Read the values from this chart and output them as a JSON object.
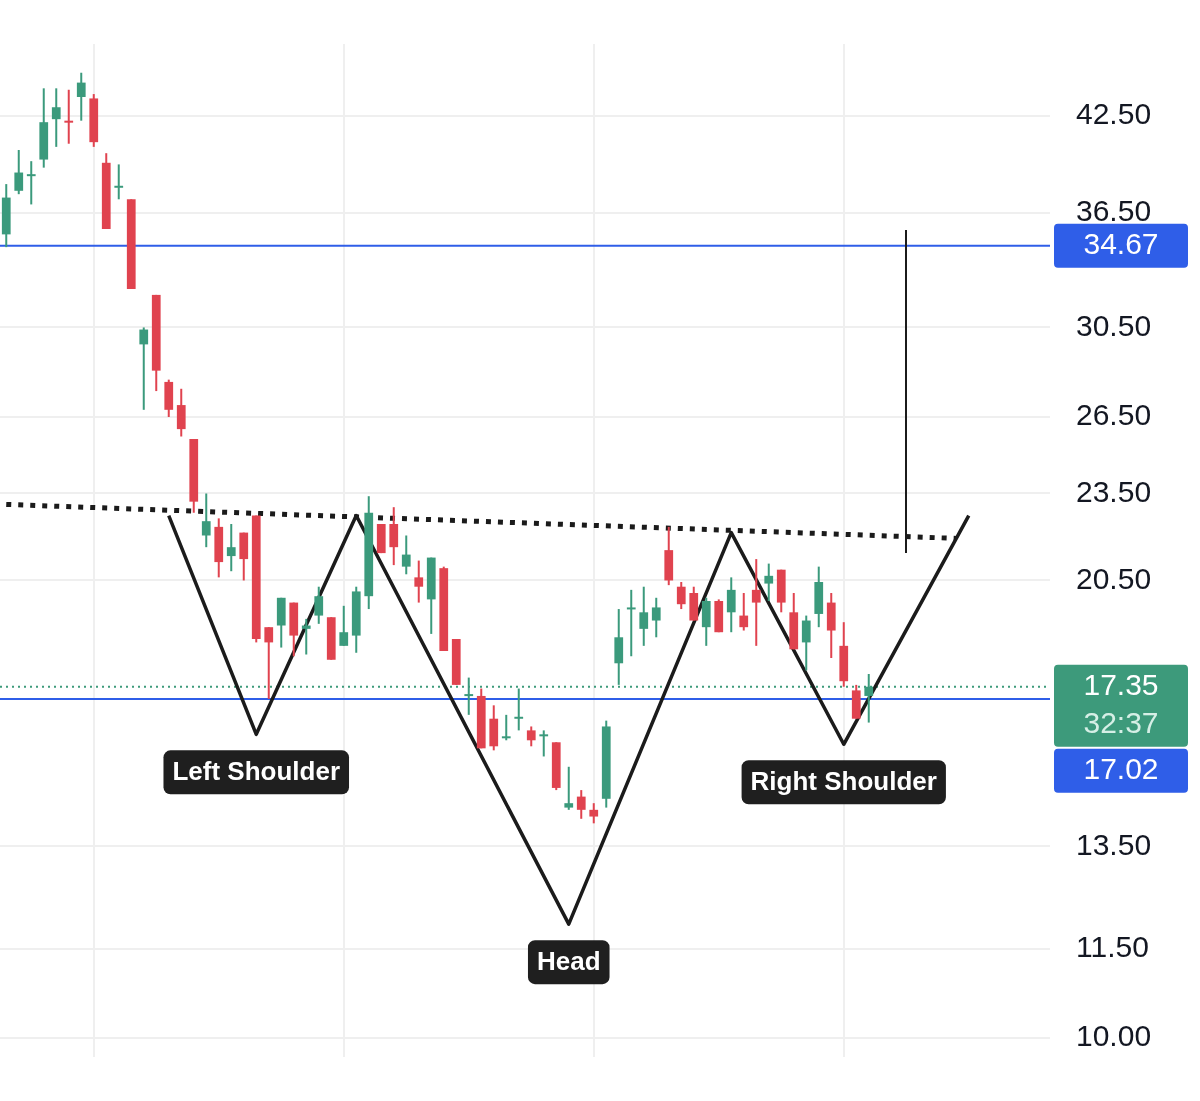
{
  "chart_data": {
    "type": "candlestick",
    "categories": [
      null,
      null,
      null,
      null,
      null,
      null,
      null,
      null,
      null,
      null,
      null,
      null,
      null,
      null,
      null,
      null,
      null,
      null,
      null,
      null,
      null,
      null,
      null,
      null,
      null,
      null,
      null,
      null,
      null,
      null,
      null,
      null,
      null,
      null,
      null,
      null,
      null,
      null,
      null,
      null,
      null,
      null,
      null,
      null,
      null,
      null,
      null,
      null,
      null,
      null,
      null,
      null,
      null,
      null,
      null,
      null,
      null,
      null,
      null,
      null,
      null,
      null,
      null,
      null,
      null,
      null,
      null,
      null,
      null,
      null,
      null,
      null,
      null,
      null,
      null,
      null,
      null,
      null,
      null,
      null,
      null,
      null,
      null,
      null
    ],
    "ohlc": [
      [
        35.3,
        38.2,
        34.6,
        37.4
      ],
      [
        37.8,
        40.3,
        37.6,
        38.9
      ],
      [
        38.7,
        39.6,
        37.0,
        38.8
      ],
      [
        39.7,
        44.4,
        39.2,
        42.1
      ],
      [
        42.3,
        44.4,
        40.5,
        43.1
      ],
      [
        42.2,
        44.3,
        40.7,
        42.1
      ],
      [
        43.8,
        45.5,
        42.2,
        44.8
      ],
      [
        43.7,
        44.0,
        40.5,
        40.8
      ],
      [
        39.5,
        40.1,
        35.6,
        35.6
      ],
      [
        38.0,
        39.4,
        37.3,
        38.1
      ],
      [
        37.3,
        37.3,
        32.4,
        32.4
      ],
      [
        29.7,
        30.5,
        26.8,
        30.4
      ],
      [
        32.1,
        32.1,
        27.6,
        28.5
      ],
      [
        28.0,
        28.1,
        26.5,
        26.8
      ],
      [
        27.0,
        27.7,
        25.7,
        26.0
      ],
      [
        25.6,
        25.6,
        22.8,
        23.2
      ],
      [
        22.0,
        23.5,
        21.6,
        22.5
      ],
      [
        22.3,
        22.6,
        20.6,
        21.1
      ],
      [
        21.3,
        22.4,
        20.8,
        21.6
      ],
      [
        22.1,
        22.1,
        20.5,
        21.2
      ],
      [
        22.7,
        22.7,
        18.6,
        18.7
      ],
      [
        19.05,
        19.05,
        17.02,
        18.6
      ],
      [
        19.1,
        19.95,
        18.45,
        19.95
      ],
      [
        19.8,
        19.8,
        18.2,
        18.8
      ],
      [
        19.0,
        19.3,
        18.25,
        19.1
      ],
      [
        19.4,
        20.3,
        19.15,
        20.0
      ],
      [
        19.35,
        19.35,
        18.1,
        18.1
      ],
      [
        18.5,
        19.7,
        18.5,
        18.9
      ],
      [
        18.8,
        20.3,
        18.3,
        20.15
      ],
      [
        20.0,
        23.4,
        19.6,
        22.8
      ],
      [
        22.4,
        22.4,
        21.4,
        21.4
      ],
      [
        22.4,
        23.0,
        21.0,
        21.6
      ],
      [
        20.95,
        22.0,
        20.7,
        21.35
      ],
      [
        20.6,
        21.15,
        19.8,
        20.3
      ],
      [
        19.9,
        21.25,
        18.85,
        21.25
      ],
      [
        20.9,
        20.95,
        18.35,
        18.35
      ],
      [
        18.7,
        18.7,
        17.4,
        17.4
      ],
      [
        17.1,
        17.6,
        16.6,
        17.15
      ],
      [
        17.1,
        17.3,
        15.75,
        15.75
      ],
      [
        16.5,
        16.85,
        15.7,
        15.8
      ],
      [
        16.0,
        16.6,
        15.95,
        16.05
      ],
      [
        16.5,
        17.3,
        16.2,
        16.55
      ],
      [
        16.2,
        16.3,
        15.8,
        15.95
      ],
      [
        16.05,
        16.2,
        15.55,
        16.1
      ],
      [
        15.9,
        15.9,
        14.75,
        14.8
      ],
      [
        14.35,
        15.3,
        14.3,
        14.45
      ],
      [
        14.6,
        14.75,
        14.1,
        14.3
      ],
      [
        14.3,
        14.45,
        14.0,
        14.15
      ],
      [
        14.55,
        16.45,
        14.35,
        16.3
      ],
      [
        18.0,
        19.6,
        17.4,
        18.75
      ],
      [
        19.6,
        20.2,
        18.2,
        19.65
      ],
      [
        19.0,
        20.3,
        18.5,
        19.5
      ],
      [
        19.25,
        19.95,
        18.75,
        19.65
      ],
      [
        21.5,
        22.3,
        20.35,
        20.5
      ],
      [
        20.3,
        20.45,
        19.6,
        19.75
      ],
      [
        20.1,
        20.3,
        19.25,
        19.25
      ],
      [
        19.05,
        19.95,
        18.5,
        19.85
      ],
      [
        19.85,
        19.9,
        18.9,
        18.9
      ],
      [
        19.5,
        20.6,
        18.9,
        20.2
      ],
      [
        19.4,
        20.1,
        18.95,
        19.05
      ],
      [
        20.2,
        21.2,
        18.5,
        19.8
      ],
      [
        20.4,
        21.05,
        19.85,
        20.65
      ],
      [
        20.85,
        20.85,
        19.5,
        19.8
      ],
      [
        19.5,
        20.1,
        18.4,
        18.4
      ],
      [
        18.6,
        19.4,
        17.8,
        19.25
      ],
      [
        19.45,
        20.95,
        19.05,
        20.45
      ],
      [
        19.8,
        20.1,
        18.15,
        18.95
      ],
      [
        18.5,
        19.2,
        17.35,
        17.5
      ],
      [
        17.25,
        17.4,
        16.5,
        16.5
      ],
      [
        17.1,
        17.7,
        16.4,
        17.35
      ],
      null,
      null,
      null,
      null,
      null,
      null,
      null,
      null,
      null,
      null,
      null,
      null,
      null,
      null
    ],
    "series": [
      {
        "type": "line",
        "values": [
          null,
          null,
          null,
          null,
          null,
          null,
          null,
          null,
          null,
          null,
          null,
          null,
          null,
          22.7,
          null,
          null,
          null,
          null,
          null,
          null,
          16.1,
          null,
          null,
          null,
          null,
          null,
          null,
          null,
          22.7,
          null,
          null,
          null,
          null,
          null,
          null,
          null,
          null,
          null,
          null,
          null,
          null,
          null,
          null,
          null,
          null,
          11.95,
          null,
          null,
          null,
          null,
          null,
          null,
          null,
          null,
          null,
          null,
          null,
          null,
          22.1,
          null,
          null,
          null,
          null,
          null,
          null,
          null,
          null,
          15.85,
          null,
          null,
          null,
          null,
          null,
          null,
          null,
          null,
          null,
          22.7,
          null,
          null,
          null,
          null,
          null,
          null
        ],
        "color": "#1b1b1b",
        "line_style": "solid"
      },
      {
        "type": "line",
        "values": [
          23.1,
          null,
          null,
          null,
          null,
          null,
          null,
          null,
          null,
          null,
          null,
          null,
          null,
          null,
          null,
          null,
          null,
          null,
          null,
          null,
          null,
          null,
          null,
          null,
          null,
          null,
          null,
          null,
          null,
          null,
          null,
          null,
          null,
          null,
          null,
          null,
          null,
          null,
          null,
          null,
          null,
          null,
          null,
          null,
          null,
          null,
          null,
          null,
          null,
          null,
          null,
          null,
          null,
          null,
          null,
          null,
          null,
          null,
          null,
          null,
          null,
          null,
          null,
          null,
          null,
          null,
          null,
          null,
          null,
          null,
          null,
          null,
          null,
          null,
          null,
          null,
          21.9,
          null,
          null,
          null,
          null,
          null,
          null,
          null
        ],
        "color": "#1b1b1b",
        "line_style": "dotted"
      }
    ],
    "ref_lines": [
      {
        "axis": "y",
        "value": 17.35,
        "label": "17.35\n32:37",
        "color": "#3d9a7b",
        "line_style": "dotted"
      },
      {
        "axis": "y",
        "value": 34.67,
        "label": "34.67",
        "color": "#2f5ee8",
        "line_style": "solid"
      },
      {
        "axis": "y",
        "value": 17.02,
        "label": "17.02",
        "color": "#2f5ee8",
        "line_style": "solid"
      }
    ],
    "annotations": [
      {
        "text": "Left Shoulder",
        "y": 16.1
      },
      {
        "text": "Head",
        "y": 11.95
      },
      {
        "text": "Right Shoulder",
        "y": 15.85
      }
    ],
    "log": true,
    "ylim": [
      9.7,
      47.6
    ],
    "yticks": [
      {
        "value": 42.5,
        "label": "42.50"
      },
      {
        "value": 36.5,
        "label": "36.50"
      },
      {
        "value": 30.5,
        "label": "30.50"
      },
      {
        "value": 26.5,
        "label": "26.50"
      },
      {
        "value": 23.5,
        "label": "23.50"
      },
      {
        "value": 20.5,
        "label": "20.50"
      },
      {
        "value": 13.5,
        "label": "13.50"
      },
      {
        "value": 11.5,
        "label": "11.50"
      },
      {
        "value": 10.0,
        "label": "10.00"
      }
    ],
    "grid": true,
    "tick_labels": "y",
    "legend": false
  }
}
